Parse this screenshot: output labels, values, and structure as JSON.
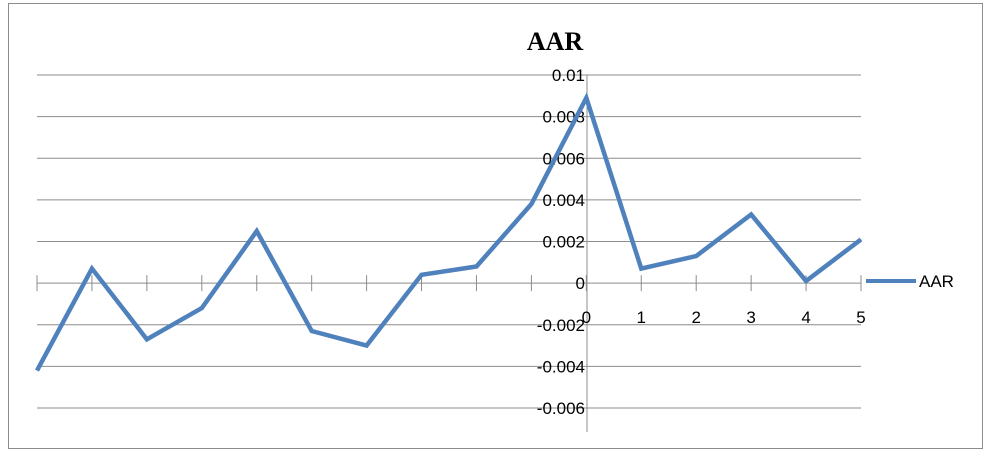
{
  "chart_data": {
    "type": "line",
    "title": "AAR",
    "xlabel": "",
    "ylabel": "",
    "x": [
      -10,
      -9,
      -8,
      -7,
      -6,
      -5,
      -4,
      -3,
      -2,
      -1,
      0,
      1,
      2,
      3,
      4,
      5
    ],
    "x_tick_labels": [
      "",
      "",
      "",
      "",
      "",
      "",
      "",
      "",
      "",
      "",
      "0",
      "1",
      "2",
      "3",
      "4",
      "5"
    ],
    "series": [
      {
        "name": "AAR",
        "values": [
          -0.0042,
          0.0007,
          -0.0027,
          -0.0012,
          0.0025,
          -0.0023,
          -0.003,
          0.0004,
          0.0008,
          0.0038,
          0.0089,
          0.0007,
          0.0013,
          0.0033,
          0.0001,
          0.0021
        ]
      }
    ],
    "ylim": [
      -0.006,
      0.01
    ],
    "y_tick_labels": [
      "0.01",
      "0.008",
      "0.006",
      "0.004",
      "0.002",
      "0",
      "-0.002",
      "-0.004",
      "-0.006"
    ],
    "y_ticks": [
      0.01,
      0.008,
      0.006,
      0.004,
      0.002,
      0,
      -0.002,
      -0.004,
      -0.006
    ],
    "grid": true,
    "legend": "right",
    "colors": {
      "line": "#4f81bd",
      "grid": "#8c8c8c",
      "axis": "#8c8c8c"
    }
  }
}
